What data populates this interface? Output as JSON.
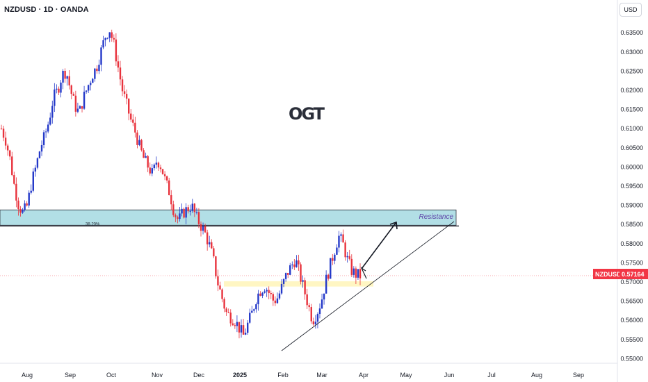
{
  "header": {
    "symbol_title": "NZDUSD · 1D · OANDA",
    "currency_button": "USD",
    "logo_text": "OGT"
  },
  "price_badge": {
    "symbol": "NZDUSD",
    "value": "0.57164",
    "color": "#f23645"
  },
  "colors": {
    "up": "#2439c9",
    "down": "#e8323c",
    "zone_fill": "#b2dfe6",
    "support_fill": "#fff4b8"
  },
  "annotations": {
    "resistance_label": "Resistance",
    "fib_label": "38.20%"
  },
  "chart_data": {
    "type": "candlestick",
    "ylim": [
      0.5488,
      0.6392
    ],
    "y_ticks": [
      "0.63500",
      "0.63000",
      "0.62500",
      "0.62000",
      "0.61500",
      "0.61000",
      "0.60500",
      "0.60000",
      "0.59500",
      "0.59000",
      "0.58500",
      "0.58000",
      "0.57500",
      "0.57000",
      "0.56500",
      "0.56000",
      "0.55500",
      "0.55000"
    ],
    "x_ticks": [
      "Aug",
      "Sep",
      "Oct",
      "Nov",
      "Dec",
      "2025",
      "Feb",
      "Mar",
      "Apr",
      "May",
      "Jun",
      "Jul",
      "Aug",
      "Sep"
    ],
    "close_path": [
      0.61,
      0.607,
      0.602,
      0.595,
      0.59,
      0.588,
      0.59,
      0.596,
      0.6,
      0.605,
      0.608,
      0.612,
      0.618,
      0.62,
      0.624,
      0.625,
      0.62,
      0.616,
      0.614,
      0.618,
      0.621,
      0.624,
      0.626,
      0.63,
      0.634,
      0.636,
      0.632,
      0.626,
      0.62,
      0.616,
      0.612,
      0.609,
      0.605,
      0.602,
      0.6,
      0.598,
      0.602,
      0.6,
      0.596,
      0.593,
      0.588,
      0.586,
      0.588,
      0.589,
      0.59,
      0.587,
      0.585,
      0.583,
      0.58,
      0.576,
      0.57,
      0.566,
      0.562,
      0.561,
      0.56,
      0.558,
      0.556,
      0.559,
      0.562,
      0.566,
      0.568,
      0.569,
      0.567,
      0.565,
      0.566,
      0.569,
      0.572,
      0.574,
      0.576,
      0.572,
      0.568,
      0.564,
      0.56,
      0.562,
      0.565,
      0.57,
      0.574,
      0.578,
      0.582,
      0.58,
      0.576,
      0.573,
      0.572,
      0.5716
    ],
    "resistance_zone": [
      0.5848,
      0.5888
    ],
    "fib_level": 0.5846,
    "support_zone": [
      0.5688,
      0.5702
    ],
    "current_price": 0.57164
  }
}
